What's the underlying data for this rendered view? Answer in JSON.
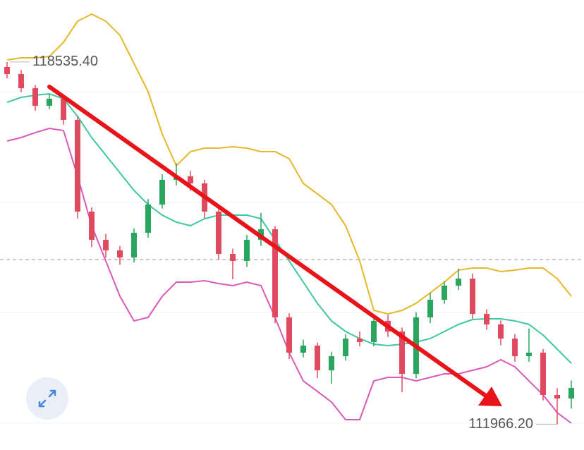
{
  "chart_data": {
    "type": "candlestick",
    "ylim": [
      111500,
      119660
    ],
    "gridlines": [
      117997,
      115989,
      113994,
      111986
    ],
    "reference_line": 114953,
    "up_color": "#2aa55e",
    "down_color": "#e04a5f",
    "open": [
      118445,
      118317,
      118061,
      117742,
      117869,
      117486,
      115823,
      115311,
      115120,
      114992,
      115439,
      115951,
      116399,
      116463,
      116335,
      115823,
      115056,
      114928,
      115311,
      115503,
      113905,
      113265,
      113393,
      112945,
      113201,
      113521,
      113457,
      113841,
      113649,
      112881,
      113905,
      114224,
      114480,
      114608,
      113968,
      113777,
      113521,
      113201,
      113265,
      112498,
      112434
    ],
    "high": [
      118535.4,
      118390,
      118120,
      117960,
      117930,
      117550,
      115900,
      115420,
      115200,
      115520,
      116050,
      116500,
      116700,
      116560,
      116400,
      115900,
      115150,
      115400,
      115800,
      115560,
      113980,
      113500,
      113450,
      113280,
      113600,
      113650,
      113950,
      113950,
      113720,
      114000,
      114350,
      114560,
      114790,
      114700,
      114050,
      113850,
      113600,
      113700,
      113330,
      112620,
      112760
    ],
    "low": [
      118240,
      117990,
      117650,
      117680,
      117400,
      115700,
      115180,
      114990,
      114860,
      114900,
      115350,
      115880,
      116300,
      116200,
      115700,
      114950,
      114600,
      114820,
      115200,
      113800,
      113150,
      113180,
      112800,
      112700,
      113120,
      113380,
      113380,
      113550,
      112550,
      112800,
      113800,
      114150,
      114400,
      113880,
      113680,
      113400,
      113100,
      113100,
      112400,
      111966.2,
      112250
    ],
    "close": [
      118317,
      118061,
      117742,
      117869,
      117486,
      115823,
      115311,
      115120,
      114992,
      115439,
      115951,
      116399,
      116463,
      116335,
      115823,
      115056,
      114928,
      115311,
      115503,
      113905,
      113265,
      113393,
      112945,
      113201,
      113521,
      113457,
      113841,
      113649,
      112881,
      113905,
      114224,
      114480,
      114608,
      113968,
      113777,
      113521,
      113201,
      113265,
      112498,
      112434,
      112626
    ],
    "series": [
      {
        "color": "#e6b82a",
        "values": [
          118573,
          118611,
          118611,
          118637,
          118893,
          119276,
          119404,
          119276,
          119021,
          118509,
          117997,
          117230,
          116654,
          116910,
          116974,
          116974,
          117000,
          116974,
          116910,
          116910,
          116782,
          116335,
          116143,
          115951,
          115567,
          114928,
          114032,
          113968,
          114032,
          114160,
          114352,
          114544,
          114761,
          114800,
          114800,
          114736,
          114761,
          114800,
          114800,
          114608,
          114288
        ]
      },
      {
        "color": "#3fc7a2",
        "values": [
          117805,
          117895,
          117933,
          117959,
          117869,
          117550,
          117166,
          116846,
          116526,
          116207,
          115951,
          115759,
          115631,
          115567,
          115695,
          115759,
          115759,
          115759,
          115695,
          115311,
          114928,
          114544,
          114160,
          113841,
          113649,
          113521,
          113418,
          113393,
          113418,
          113457,
          113521,
          113649,
          113777,
          113866,
          113879,
          113879,
          113841,
          113777,
          113585,
          113329,
          113073
        ]
      },
      {
        "color": "#d95ab8",
        "values": [
          117102,
          117166,
          117255,
          117332,
          117294,
          116463,
          115567,
          114928,
          114288,
          113841,
          113905,
          114288,
          114544,
          114544,
          114570,
          114518,
          114480,
          114544,
          114480,
          113905,
          113265,
          112753,
          112562,
          112370,
          112050,
          112050,
          112753,
          112817,
          112817,
          112753,
          112817,
          112881,
          112881,
          112945,
          113009,
          113137,
          113009,
          112753,
          112498,
          112178,
          111986
        ]
      }
    ],
    "annotations": [
      {
        "value": 118535.4,
        "label": "118535.40"
      },
      {
        "value": 111966.2,
        "label": "111966.20"
      }
    ]
  }
}
